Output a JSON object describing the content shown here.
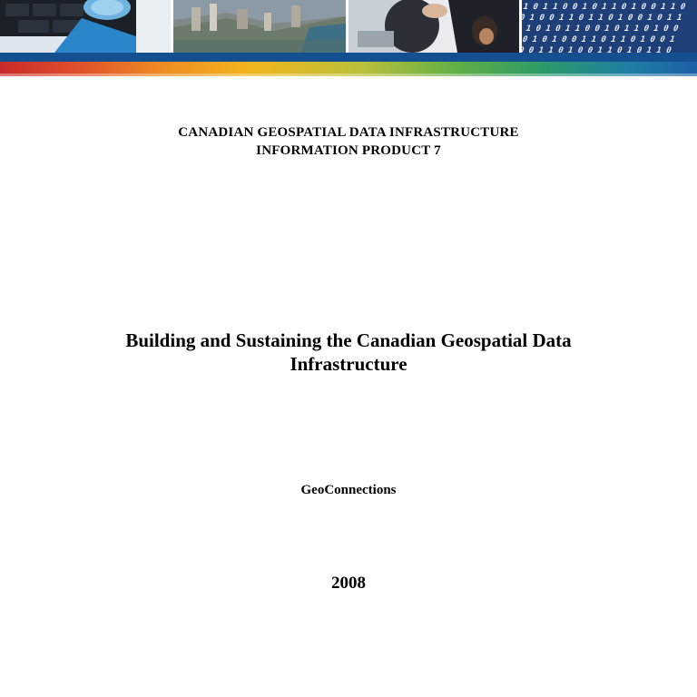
{
  "header": {
    "line1": "CANADIAN GEOSPATIAL DATA INFRASTRUCTURE",
    "line2": "INFORMATION PRODUCT 7"
  },
  "title": {
    "line1": "Building and Sustaining the Canadian Geospatial Data",
    "line2": "Infrastructure"
  },
  "author": "GeoConnections",
  "year": "2008",
  "colors": {
    "banner_blue": "#14508f",
    "rainbow_start": "#c92a2a",
    "rainbow_end": "#1d5fa5"
  }
}
